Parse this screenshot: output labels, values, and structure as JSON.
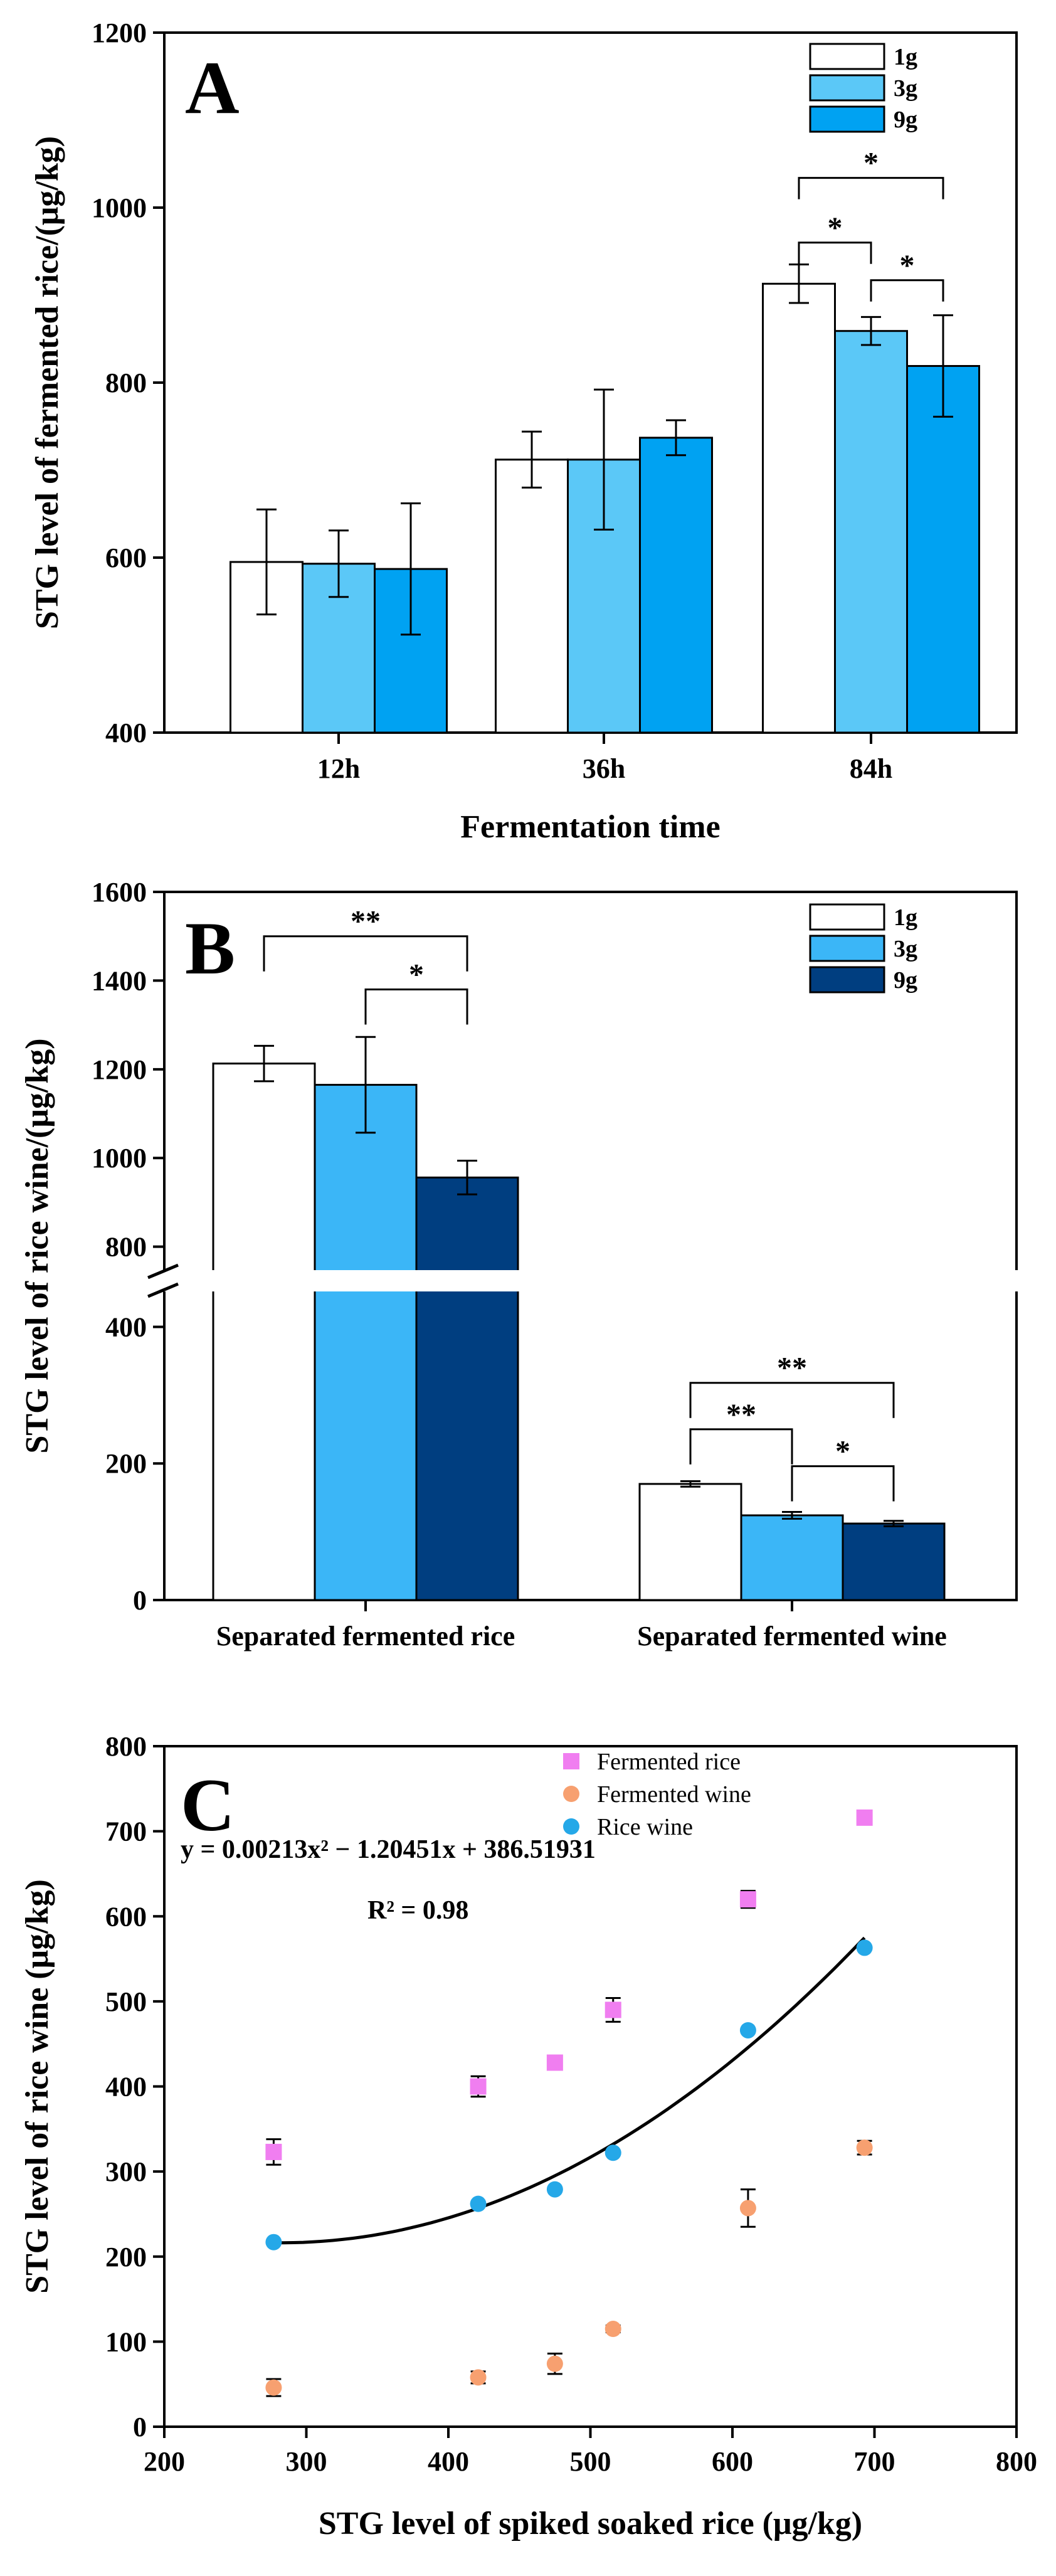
{
  "chart_data": [
    {
      "panel": "A",
      "type": "bar",
      "xlabel": "Fermentation time",
      "ylabel": "STG level of fermented rice/(μg/kg)",
      "ylim": [
        400,
        1200
      ],
      "yticks": [
        400,
        600,
        800,
        1000,
        1200
      ],
      "categories": [
        "12h",
        "36h",
        "84h"
      ],
      "series": [
        {
          "name": "1g",
          "color": "#ffffff",
          "values": [
            595,
            712,
            913
          ],
          "errors": [
            60,
            32,
            22
          ]
        },
        {
          "name": "3g",
          "color": "#5bc8f7",
          "values": [
            593,
            712,
            859
          ],
          "errors": [
            38,
            80,
            16
          ]
        },
        {
          "name": "9g",
          "color": "#00a2f2",
          "values": [
            587,
            737,
            819
          ],
          "errors": [
            75,
            20,
            58
          ]
        }
      ],
      "significance": [
        {
          "category": "84h",
          "from": "1g",
          "to": "3g",
          "label": "*"
        },
        {
          "category": "84h",
          "from": "1g",
          "to": "9g",
          "label": "*"
        },
        {
          "category": "84h",
          "from": "3g",
          "to": "9g",
          "label": "*"
        }
      ],
      "legend_position": "top-right",
      "grid": false
    },
    {
      "panel": "B",
      "type": "bar",
      "xlabel": "",
      "ylabel": "STG level of rice wine/(μg/kg)",
      "ylim": [
        0,
        1600
      ],
      "axis_break": [
        450,
        750
      ],
      "yticks": [
        0,
        200,
        400,
        800,
        1000,
        1200,
        1400,
        1600
      ],
      "categories": [
        "Separated fermented rice",
        "Separated fermented wine"
      ],
      "series": [
        {
          "name": "1g",
          "color": "#ffffff",
          "values": [
            1213,
            170
          ],
          "errors": [
            40,
            4
          ]
        },
        {
          "name": "3g",
          "color": "#3bb6f7",
          "values": [
            1165,
            124
          ],
          "errors": [
            108,
            5
          ]
        },
        {
          "name": "9g",
          "color": "#003e80",
          "values": [
            956,
            112
          ],
          "errors": [
            38,
            4
          ]
        }
      ],
      "significance": [
        {
          "category": "Separated fermented rice",
          "from": "1g",
          "to": "9g",
          "label": "**"
        },
        {
          "category": "Separated fermented rice",
          "from": "3g",
          "to": "9g",
          "label": "*"
        },
        {
          "category": "Separated fermented wine",
          "from": "1g",
          "to": "9g",
          "label": "**"
        },
        {
          "category": "Separated fermented wine",
          "from": "1g",
          "to": "3g",
          "label": "**"
        },
        {
          "category": "Separated fermented wine",
          "from": "3g",
          "to": "9g",
          "label": "*"
        }
      ],
      "legend_position": "top-right",
      "grid": false
    },
    {
      "panel": "C",
      "type": "scatter",
      "xlabel": "STG level of spiked soaked rice (μg/kg)",
      "ylabel": "STG level of rice wine (μg/kg)",
      "xlim": [
        200,
        800
      ],
      "ylim": [
        0,
        800
      ],
      "xticks": [
        200,
        300,
        400,
        500,
        600,
        700,
        800
      ],
      "yticks": [
        0,
        100,
        200,
        300,
        400,
        500,
        600,
        700,
        800
      ],
      "x": [
        277,
        421,
        475,
        516,
        611,
        693
      ],
      "series": [
        {
          "name": "Fermented rice",
          "marker": "square",
          "color": "#f07ef0",
          "values": [
            323,
            400,
            428,
            490,
            620,
            716
          ],
          "errors": [
            15,
            12,
            6,
            14,
            10,
            5
          ]
        },
        {
          "name": "Fermented wine",
          "marker": "circle",
          "color": "#f7a070",
          "values": [
            46,
            58,
            74,
            115,
            257,
            328
          ],
          "errors": [
            10,
            7,
            12,
            4,
            22,
            8
          ]
        },
        {
          "name": "Rice wine",
          "marker": "circle",
          "color": "#25a8e8",
          "values": [
            217,
            262,
            279,
            322,
            466,
            563
          ],
          "errors": [
            0,
            0,
            0,
            0,
            0,
            0
          ]
        }
      ],
      "fit": {
        "equation": "y = 0.00213x² − 1.20451x + 386.51931",
        "r2_label": "R² = 0.98",
        "coefficients": [
          0.00213,
          -1.20451,
          386.51931
        ],
        "x_range": [
          277,
          693
        ]
      },
      "legend_position": "top-right",
      "grid": false
    }
  ]
}
